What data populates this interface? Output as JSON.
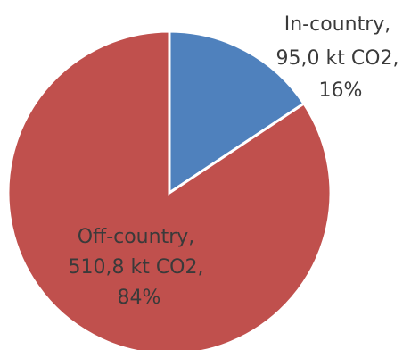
{
  "chart_data": {
    "type": "pie",
    "unit": "kt CO2",
    "legend": "none",
    "series": [
      {
        "values": [
          {
            "name": "In-country",
            "value": 95.0,
            "percent": 16,
            "color": "#4f81bd",
            "label_lines": [
              "In-country,",
              "95,0 kt CO2,",
              "16%"
            ]
          },
          {
            "name": "Off-country",
            "value": 510.8,
            "percent": 84,
            "color": "#c0504d",
            "label_lines": [
              "Off-country,",
              "510,8 kt CO2,",
              "84%"
            ]
          }
        ]
      }
    ]
  }
}
